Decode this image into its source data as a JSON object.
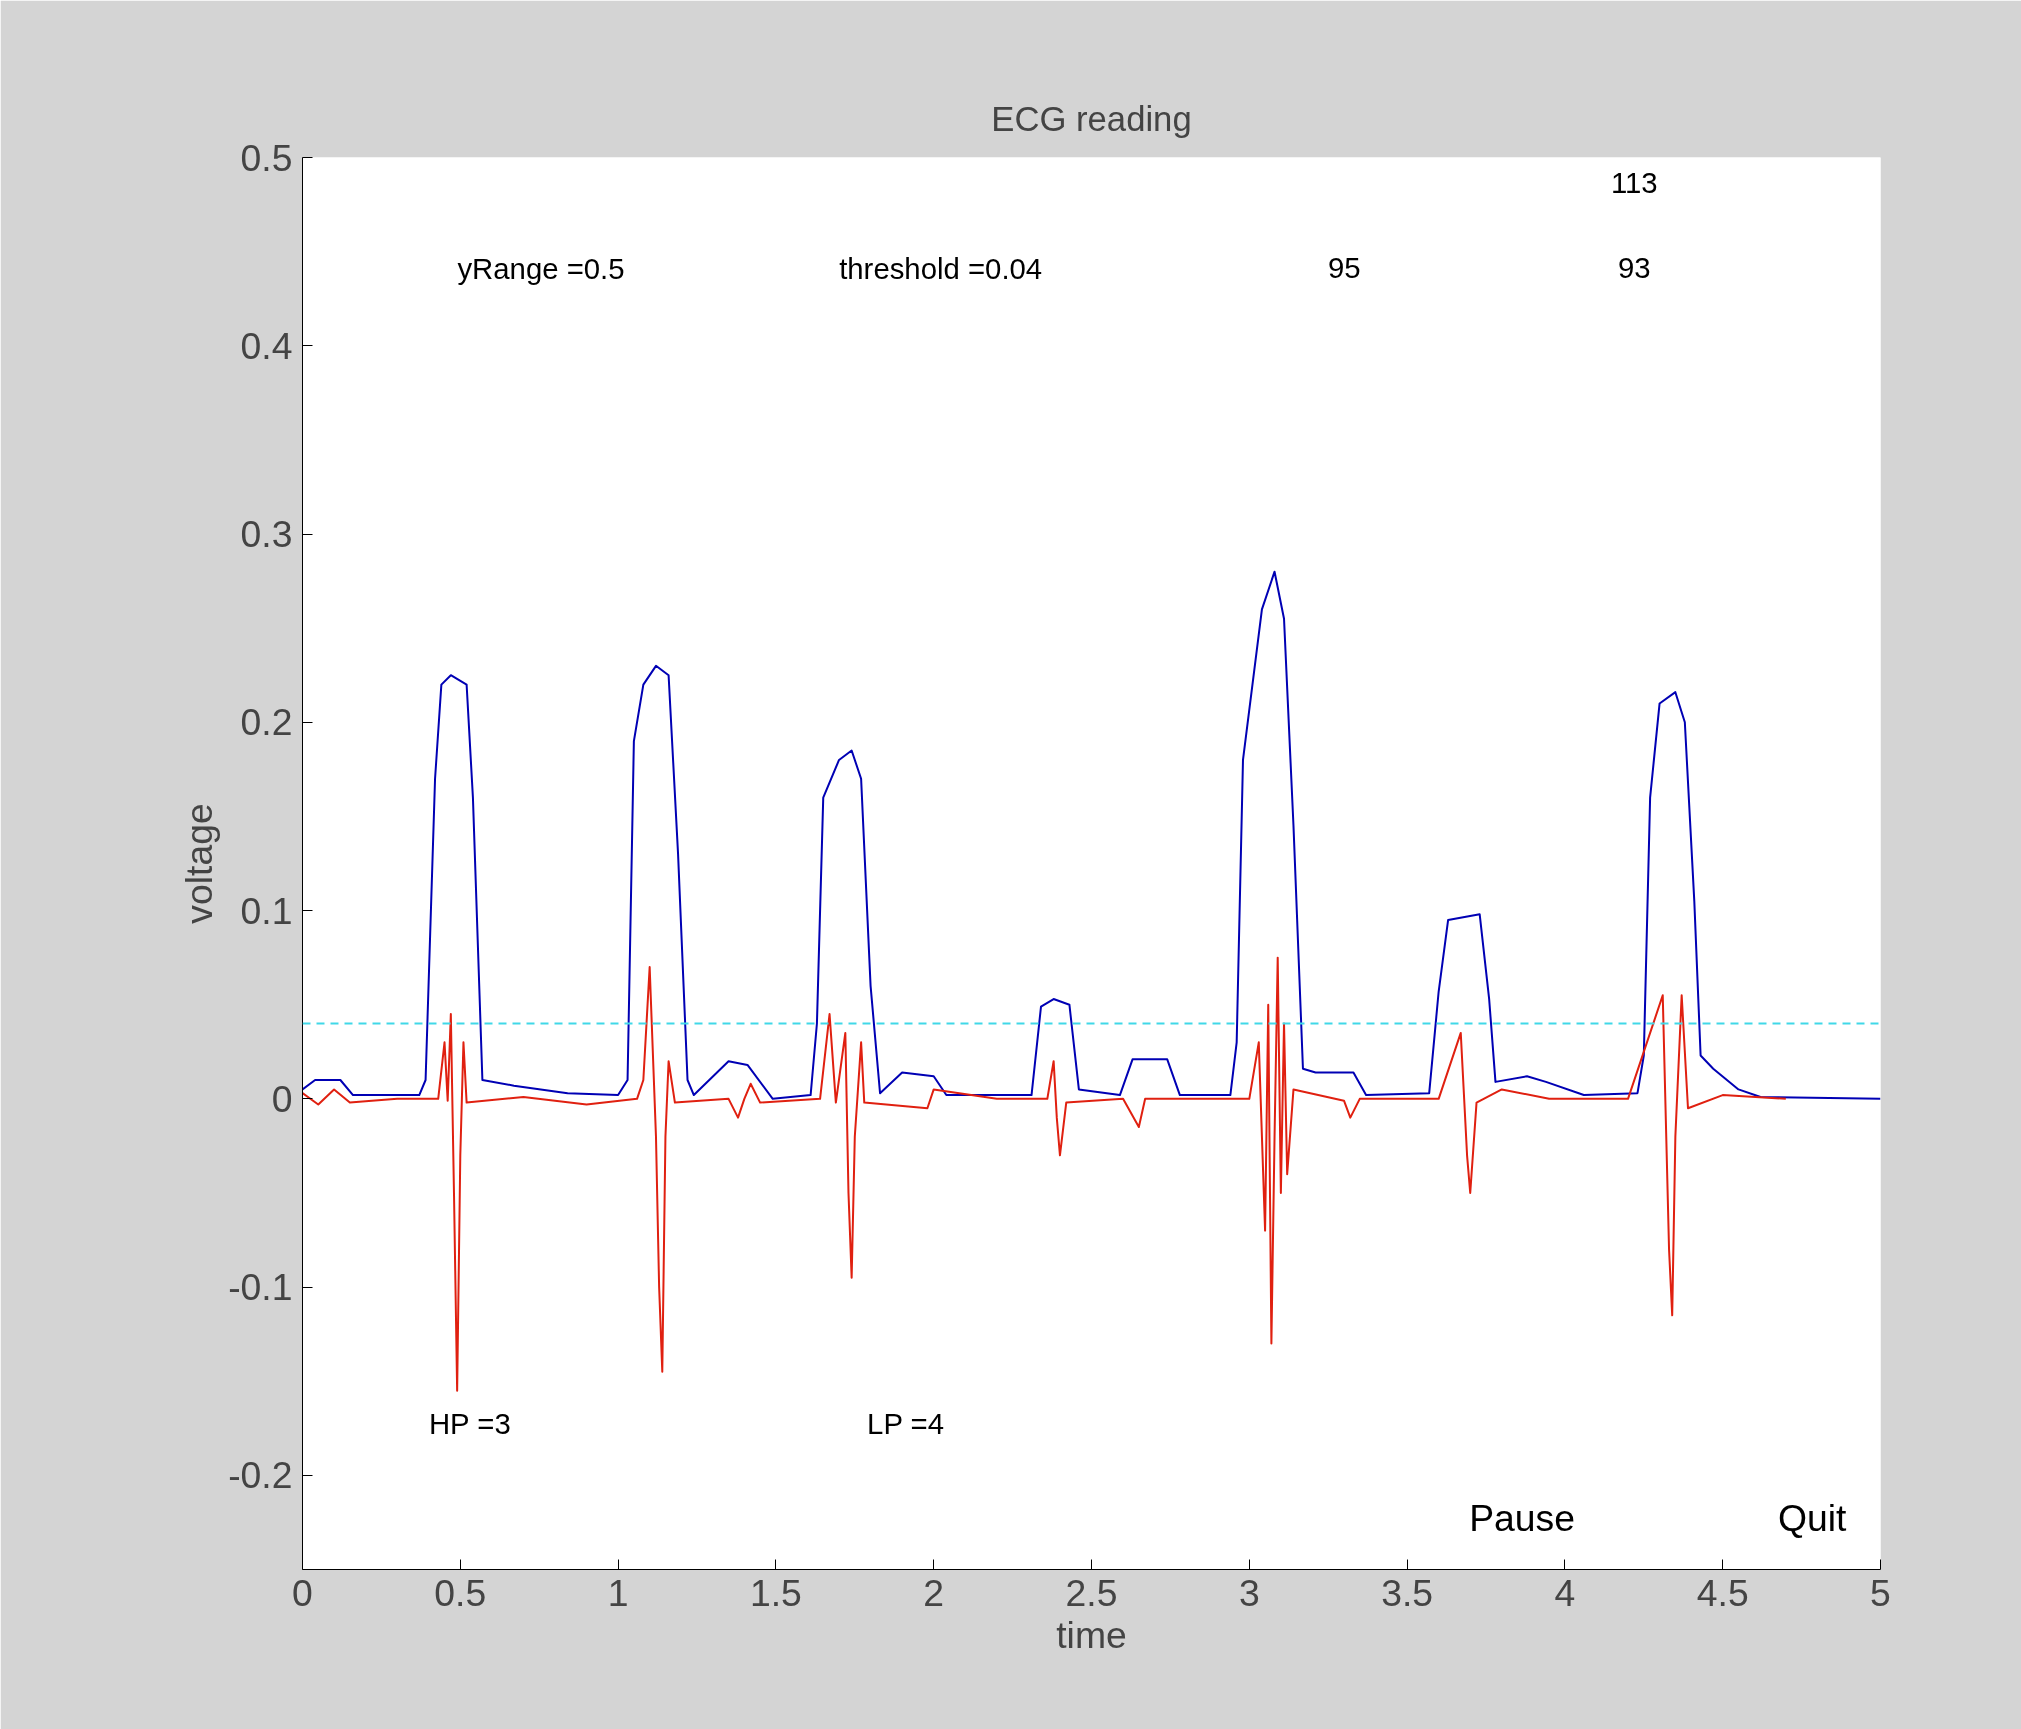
{
  "chart_data": {
    "type": "line",
    "title": "ECG reading",
    "xlabel": "time",
    "ylabel": "voltage",
    "xlim": [
      0,
      5
    ],
    "xticks": [
      0,
      0.5,
      1,
      1.5,
      2,
      2.5,
      3,
      3.5,
      4,
      4.5,
      5
    ],
    "ylim": [
      -0.25,
      0.5
    ],
    "yticks": [
      -0.2,
      -0.1,
      0,
      0.1,
      0.2,
      0.3,
      0.4,
      0.5
    ],
    "grid": false,
    "series": [
      {
        "color": "#0000b4",
        "x": [
          0,
          0.04,
          0.12,
          0.16,
          0.37,
          0.39,
          0.42,
          0.44,
          0.47,
          0.52,
          0.54,
          0.57,
          0.67,
          0.84,
          1.0,
          1.03,
          1.05,
          1.08,
          1.12,
          1.16,
          1.19,
          1.22,
          1.24,
          1.35,
          1.41,
          1.49,
          1.61,
          1.63,
          1.65,
          1.7,
          1.74,
          1.77,
          1.8,
          1.83,
          1.9,
          2.0,
          2.04,
          2.31,
          2.34,
          2.38,
          2.43,
          2.46,
          2.59,
          2.63,
          2.74,
          2.78,
          2.94,
          2.96,
          2.98,
          3.04,
          3.08,
          3.11,
          3.14,
          3.17,
          3.21,
          3.33,
          3.37,
          3.57,
          3.6,
          3.63,
          3.73,
          3.76,
          3.78,
          3.88,
          3.94,
          4.06,
          4.23,
          4.25,
          4.27,
          4.3,
          4.35,
          4.38,
          4.41,
          4.43,
          4.47,
          4.55,
          4.62,
          5.0
        ],
        "values": [
          0.005,
          0.01,
          0.01,
          0.002,
          0.002,
          0.01,
          0.17,
          0.22,
          0.225,
          0.22,
          0.16,
          0.01,
          0.007,
          0.003,
          0.002,
          0.01,
          0.19,
          0.22,
          0.23,
          0.225,
          0.13,
          0.01,
          0.002,
          0.02,
          0.018,
          0,
          0.002,
          0.04,
          0.16,
          0.18,
          0.185,
          0.17,
          0.06,
          0.003,
          0.014,
          0.012,
          0.002,
          0.002,
          0.049,
          0.053,
          0.05,
          0.005,
          0.002,
          0.021,
          0.021,
          0.002,
          0.002,
          0.03,
          0.18,
          0.26,
          0.28,
          0.255,
          0.145,
          0.016,
          0.014,
          0.014,
          0.002,
          0.003,
          0.057,
          0.095,
          0.098,
          0.053,
          0.009,
          0.012,
          0.009,
          0.002,
          0.003,
          0.023,
          0.16,
          0.21,
          0.216,
          0.2,
          0.105,
          0.023,
          0.016,
          0.005,
          0.001,
          0
        ]
      },
      {
        "color": "#e02010",
        "x": [
          0,
          0.05,
          0.1,
          0.15,
          0.3,
          0.43,
          0.45,
          0.46,
          0.47,
          0.48,
          0.49,
          0.5,
          0.51,
          0.52,
          0.7,
          0.9,
          1.06,
          1.08,
          1.1,
          1.12,
          1.13,
          1.14,
          1.15,
          1.16,
          1.18,
          1.35,
          1.38,
          1.4,
          1.42,
          1.45,
          1.64,
          1.67,
          1.69,
          1.72,
          1.73,
          1.74,
          1.75,
          1.77,
          1.78,
          1.98,
          2.0,
          2.2,
          2.36,
          2.38,
          2.39,
          2.4,
          2.42,
          2.6,
          2.65,
          2.67,
          2.9,
          3.0,
          3.03,
          3.05,
          3.06,
          3.07,
          3.08,
          3.09,
          3.1,
          3.11,
          3.12,
          3.14,
          3.3,
          3.32,
          3.35,
          3.6,
          3.67,
          3.69,
          3.7,
          3.72,
          3.8,
          3.95,
          4.2,
          4.31,
          4.33,
          4.34,
          4.35,
          4.37,
          4.39,
          4.5,
          4.7
        ],
        "values": [
          0.003,
          -0.003,
          0.005,
          -0.002,
          0,
          0,
          0.03,
          -0.001,
          0.045,
          -0.05,
          -0.155,
          -0.03,
          0.03,
          -0.002,
          0.001,
          -0.003,
          0,
          0.01,
          0.07,
          -0.02,
          -0.1,
          -0.145,
          -0.02,
          0.02,
          -0.002,
          0,
          -0.01,
          0,
          0.008,
          -0.002,
          0,
          0.045,
          -0.002,
          0.035,
          -0.05,
          -0.095,
          -0.02,
          0.03,
          -0.002,
          -0.005,
          0.005,
          0,
          0,
          0.02,
          -0.01,
          -0.03,
          -0.002,
          0,
          -0.015,
          0,
          0,
          0,
          0.03,
          -0.07,
          0.05,
          -0.13,
          -0.02,
          0.075,
          -0.05,
          0.04,
          -0.04,
          0.005,
          -0.001,
          -0.01,
          0,
          0,
          0.035,
          -0.03,
          -0.05,
          -0.002,
          0.005,
          0,
          0,
          0.055,
          -0.08,
          -0.115,
          -0.02,
          0.055,
          -0.005,
          0.002,
          0
        ]
      }
    ],
    "ref_lines": [
      {
        "axis": "y",
        "value": 0.04,
        "color": "#40d8e8",
        "line_style": "dashed"
      }
    ],
    "annotations": [
      "113",
      "yRange =0.5",
      "threshold =0.04",
      "95",
      "93",
      "HP =3",
      "LP =4",
      "Pause",
      "Quit"
    ]
  }
}
